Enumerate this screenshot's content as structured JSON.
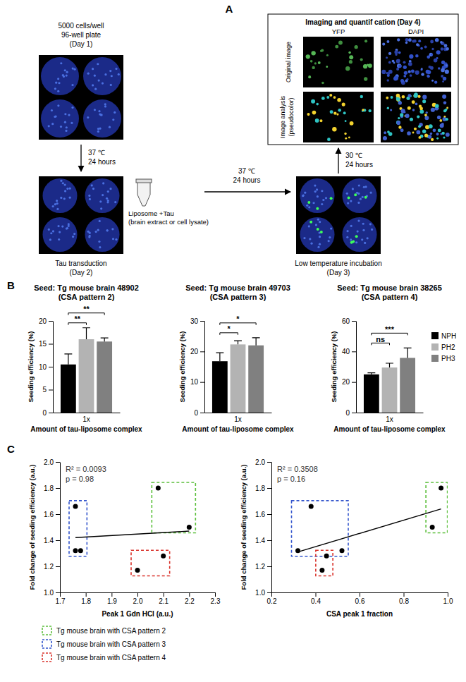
{
  "panels": [
    "A",
    "B",
    "C"
  ],
  "diagram": {
    "day1": [
      "5000 cells/well",
      "96-well plate",
      "(Day 1)"
    ],
    "step1": [
      "37 ℃",
      "24 hours"
    ],
    "tube": [
      "Liposome +Tau",
      "(brain extract or cell lysate)"
    ],
    "day2": [
      "Tau transduction",
      "(Day 2)"
    ],
    "step2": [
      "37 ℃",
      "24 hours"
    ],
    "day3": [
      "Low temperature incubation",
      "(Day 3)"
    ],
    "step3": [
      "30 ℃",
      "24 hours"
    ],
    "imaging_title": "Imaging and quantif cation (Day 4)",
    "channels": [
      "YFP",
      "DAPI"
    ],
    "rows": [
      [
        "Original image"
      ],
      [
        "Image analysis",
        "(pseudocolor)"
      ]
    ]
  },
  "chart_data": [
    {
      "type": "bar",
      "title": "Seed: Tg mouse brain 48902",
      "subtitle": "(CSA pattern 2)",
      "x_label": "Amount of tau-liposome complex",
      "y_label": "Seeding efficiency (%)",
      "categories": [
        "1x"
      ],
      "series": [
        {
          "color": "#000000",
          "values": [
            10.5
          ],
          "errors": [
            2.3
          ]
        },
        {
          "color": "#b3b3b3",
          "values": [
            16.0
          ],
          "errors": [
            2.5
          ]
        },
        {
          "color": "#808080",
          "values": [
            15.5
          ],
          "errors": [
            0.8
          ]
        }
      ],
      "ylim": [
        0,
        20
      ],
      "yticks": [
        0,
        5,
        10,
        15,
        20
      ],
      "annotations": [
        {
          "text": "**",
          "pair": [
            0,
            1
          ]
        },
        {
          "text": "**",
          "pair": [
            0,
            2
          ]
        }
      ]
    },
    {
      "type": "bar",
      "title": "Seed: Tg mouse brain 49703",
      "subtitle": "(CSA pattern 3)",
      "x_label": "Amount of tau-liposome complex",
      "y_label": "Seeding efficiency (%)",
      "categories": [
        "1x"
      ],
      "series": [
        {
          "color": "#000000",
          "values": [
            16.8
          ],
          "errors": [
            2.8
          ]
        },
        {
          "color": "#b3b3b3",
          "values": [
            22.3
          ],
          "errors": [
            1.2
          ]
        },
        {
          "color": "#808080",
          "values": [
            22.0
          ],
          "errors": [
            2.5
          ]
        }
      ],
      "ylim": [
        0,
        30
      ],
      "yticks": [
        0,
        10,
        20,
        30
      ],
      "annotations": [
        {
          "text": "*",
          "pair": [
            0,
            1
          ]
        },
        {
          "text": "*",
          "pair": [
            0,
            2
          ]
        }
      ]
    },
    {
      "type": "bar",
      "title": "Seed: Tg mouse brain 38265",
      "subtitle": "(CSA pattern 4)",
      "x_label": "Amount of tau-liposome complex",
      "y_label": "Seeding efficiency (%)",
      "categories": [
        "1x"
      ],
      "series": [
        {
          "name": "NPH",
          "color": "#000000",
          "values": [
            25.0
          ],
          "errors": [
            1.0
          ]
        },
        {
          "name": "PH2",
          "color": "#b3b3b3",
          "values": [
            29.5
          ],
          "errors": [
            2.8
          ]
        },
        {
          "name": "PH3",
          "color": "#808080",
          "values": [
            35.8
          ],
          "errors": [
            6.5
          ]
        }
      ],
      "ylim": [
        0,
        60
      ],
      "yticks": [
        0,
        20,
        40,
        60
      ],
      "legend": "right",
      "annotations": [
        {
          "text": "ns",
          "pair": [
            0,
            1
          ]
        },
        {
          "text": "***",
          "pair": [
            0,
            2
          ]
        }
      ]
    },
    {
      "type": "scatter",
      "x_label": "Peak 1 Gdn HCl (a.u.)",
      "y_label": "Fold change of seeding efficiency (a.u.)",
      "annotations": [
        {
          "text": "R² = 0.0093"
        },
        {
          "text": "p = 0.98"
        }
      ],
      "xlim": [
        1.7,
        2.3
      ],
      "xticks": [
        1.7,
        1.8,
        1.9,
        {
          "value": 2,
          "label": "2.0"
        },
        2.1,
        2.2,
        2.3
      ],
      "ylim": [
        1,
        2
      ],
      "yticks": [
        {
          "value": 1,
          "label": "1.0"
        },
        1.2,
        1.4,
        1.6,
        1.8,
        {
          "value": 2,
          "label": "2.0"
        }
      ],
      "legend": "bottom",
      "series": [
        {
          "name": "Tg mouse brain with CSA pattern 2",
          "color": "#5cbf3c",
          "x": [
            2.08,
            2.2
          ],
          "values": [
            1.8,
            1.5
          ]
        },
        {
          "name": "Tg mouse brain with CSA pattern 3",
          "color": "#3355cc",
          "x": [
            1.76,
            1.76,
            1.78
          ],
          "values": [
            1.66,
            1.32,
            1.32
          ]
        },
        {
          "name": "Tg mouse brain with CSA pattern 4",
          "color": "#d9322b",
          "x": [
            2.0,
            2.1
          ],
          "values": [
            1.17,
            1.28
          ]
        },
        {
          "type": "line",
          "color": "#000000",
          "x": [
            1.76,
            2.2
          ],
          "values": [
            1.42,
            1.47
          ]
        }
      ]
    },
    {
      "type": "scatter",
      "x_label": "CSA peak 1 fraction",
      "y_label": "Fold change of seeding efficiency (a.u.)",
      "annotations": [
        {
          "text": "R² = 0.3508"
        },
        {
          "text": "p = 0.16"
        }
      ],
      "xlim": [
        0.2,
        1.0
      ],
      "xticks": [
        0.2,
        0.4,
        0.6,
        0.8,
        {
          "value": 1,
          "label": "1.0"
        }
      ],
      "ylim": [
        1,
        2
      ],
      "yticks": [
        {
          "value": 1,
          "label": "1.0"
        },
        1.2,
        1.4,
        1.6,
        1.8,
        {
          "value": 2,
          "label": "2.0"
        }
      ],
      "series": [
        {
          "color": "#5cbf3c",
          "x": [
            0.97,
            0.93
          ],
          "values": [
            1.8,
            1.5
          ]
        },
        {
          "color": "#3355cc",
          "x": [
            0.38,
            0.32,
            0.52
          ],
          "values": [
            1.66,
            1.32,
            1.32
          ]
        },
        {
          "color": "#d9322b",
          "x": [
            0.43,
            0.45
          ],
          "values": [
            1.17,
            1.28
          ]
        },
        {
          "type": "line",
          "color": "#000000",
          "x": [
            0.32,
            0.97
          ],
          "values": [
            1.31,
            1.64
          ]
        }
      ]
    }
  ]
}
